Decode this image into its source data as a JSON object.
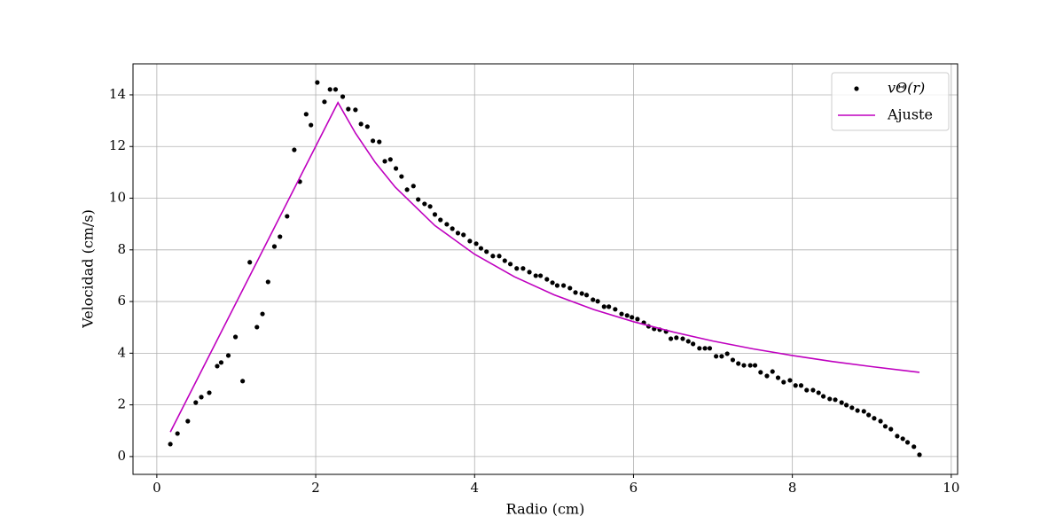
{
  "chart_data": {
    "type": "scatter",
    "xlabel": "Radio (cm)",
    "ylabel": "Velocidad (cm/s)",
    "xlim": [
      -0.3,
      10.08
    ],
    "ylim": [
      -0.69,
      15.2
    ],
    "xticks": [
      0,
      2,
      4,
      6,
      8,
      10
    ],
    "yticks": [
      0,
      2,
      4,
      6,
      8,
      10,
      12,
      14
    ],
    "grid": true,
    "legend": "upper right",
    "series": [
      {
        "name": "vΘ(r)",
        "type": "scatter",
        "color": "#000000",
        "x": [
          0.17,
          0.26,
          0.39,
          0.49,
          0.56,
          0.66,
          0.76,
          0.81,
          0.9,
          0.99,
          1.08,
          1.17,
          1.26,
          1.33,
          1.4,
          1.48,
          1.55,
          1.64,
          1.73,
          1.8,
          1.88,
          1.94,
          2.02,
          2.11,
          2.18,
          2.25,
          2.34,
          2.41,
          2.5,
          2.57,
          2.65,
          2.72,
          2.8,
          2.87,
          2.94,
          3.01,
          3.08,
          3.15,
          3.23,
          3.29,
          3.37,
          3.44,
          3.5,
          3.57,
          3.65,
          3.72,
          3.79,
          3.86,
          3.94,
          4.02,
          4.08,
          4.15,
          4.23,
          4.31,
          4.38,
          4.45,
          4.53,
          4.61,
          4.69,
          4.77,
          4.83,
          4.91,
          4.98,
          5.04,
          5.12,
          5.2,
          5.27,
          5.35,
          5.41,
          5.49,
          5.55,
          5.63,
          5.69,
          5.77,
          5.85,
          5.92,
          5.98,
          6.05,
          6.13,
          6.19,
          6.26,
          6.33,
          6.41,
          6.47,
          6.54,
          6.62,
          6.69,
          6.75,
          6.83,
          6.9,
          6.96,
          7.04,
          7.11,
          7.18,
          7.25,
          7.32,
          7.39,
          7.47,
          7.53,
          7.6,
          7.68,
          7.75,
          7.82,
          7.89,
          7.97,
          8.04,
          8.11,
          8.18,
          8.26,
          8.33,
          8.39,
          8.47,
          8.54,
          8.62,
          8.68,
          8.75,
          8.82,
          8.9,
          8.96,
          9.03,
          9.11,
          9.17,
          9.24,
          9.32,
          9.39,
          9.45,
          9.53,
          9.6
        ],
        "values": [
          0.48,
          0.89,
          1.37,
          2.09,
          2.3,
          2.47,
          3.5,
          3.64,
          3.91,
          4.63,
          2.92,
          7.52,
          5.01,
          5.52,
          6.76,
          8.13,
          8.51,
          9.3,
          11.87,
          10.64,
          13.25,
          12.83,
          14.48,
          13.73,
          14.21,
          14.21,
          13.93,
          13.45,
          13.42,
          12.87,
          12.77,
          12.22,
          12.18,
          11.43,
          11.5,
          11.15,
          10.84,
          10.33,
          10.47,
          9.95,
          9.78,
          9.68,
          9.37,
          9.16,
          8.99,
          8.82,
          8.65,
          8.58,
          8.34,
          8.24,
          8.06,
          7.93,
          7.76,
          7.76,
          7.58,
          7.45,
          7.28,
          7.28,
          7.14,
          7.0,
          7.0,
          6.86,
          6.73,
          6.62,
          6.62,
          6.52,
          6.35,
          6.31,
          6.25,
          6.07,
          6.01,
          5.8,
          5.8,
          5.7,
          5.52,
          5.46,
          5.39,
          5.32,
          5.18,
          5.04,
          4.94,
          4.91,
          4.84,
          4.56,
          4.6,
          4.56,
          4.46,
          4.36,
          4.19,
          4.19,
          4.19,
          3.88,
          3.88,
          3.98,
          3.74,
          3.6,
          3.53,
          3.53,
          3.53,
          3.26,
          3.12,
          3.29,
          3.05,
          2.88,
          2.95,
          2.75,
          2.75,
          2.57,
          2.57,
          2.47,
          2.33,
          2.23,
          2.2,
          2.09,
          1.99,
          1.89,
          1.78,
          1.75,
          1.61,
          1.48,
          1.37,
          1.17,
          1.06,
          0.79,
          0.69,
          0.55,
          0.38,
          0.07
        ]
      },
      {
        "name": "Ajuste",
        "type": "line",
        "color": "#bf00bf",
        "x": [
          0.17,
          2.28,
          2.5,
          2.75,
          3,
          3.5,
          4,
          4.5,
          5,
          5.5,
          6,
          6.5,
          7,
          7.5,
          8,
          8.5,
          9,
          9.6
        ],
        "values": [
          0.95,
          13.7,
          12.52,
          11.38,
          10.43,
          8.94,
          7.83,
          6.96,
          6.26,
          5.69,
          5.22,
          4.82,
          4.47,
          4.17,
          3.91,
          3.68,
          3.48,
          3.26
        ]
      }
    ]
  }
}
